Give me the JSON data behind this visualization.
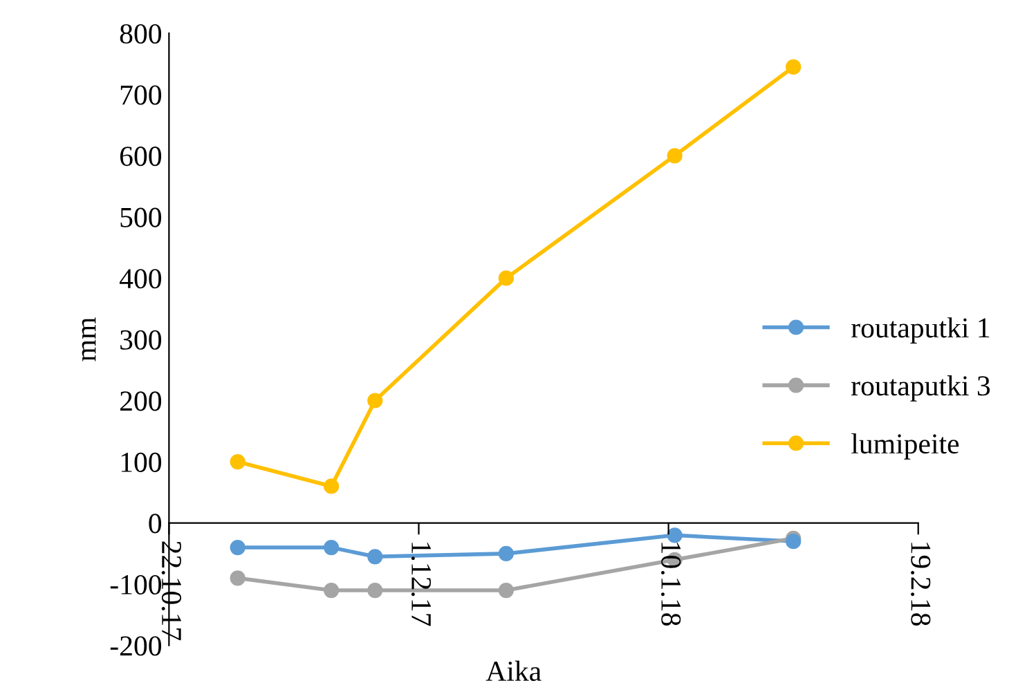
{
  "chart_data": {
    "type": "line",
    "xlabel": "Aika",
    "ylabel": "mm",
    "x": [
      "2017-11-02",
      "2017-11-17",
      "2017-11-24",
      "2017-12-15",
      "2018-01-11",
      "2018-01-30"
    ],
    "series": [
      {
        "name": "routaputki 1",
        "color": "#5b9bd5",
        "values": [
          -40,
          -40,
          -55,
          -50,
          -20,
          -30
        ]
      },
      {
        "name": "routaputki 3",
        "color": "#a5a5a5",
        "values": [
          -90,
          -110,
          -110,
          -110,
          -60,
          -25
        ]
      },
      {
        "name": "lumipeite",
        "color": "#ffc000",
        "values": [
          100,
          60,
          200,
          400,
          600,
          745
        ]
      }
    ],
    "xlim": [
      "2017-10-22",
      "2018-02-19"
    ],
    "xticks": [
      {
        "value": "2017-10-22",
        "label": "22.10.17"
      },
      {
        "value": "2017-12-01",
        "label": "1.12.17"
      },
      {
        "value": "2018-01-10",
        "label": "10.1.18"
      },
      {
        "value": "2018-02-19",
        "label": "19.2.18"
      }
    ],
    "ylim": [
      -200,
      800
    ],
    "yticks": [
      -200,
      -100,
      0,
      100,
      200,
      300,
      400,
      500,
      600,
      700,
      800
    ],
    "grid": false,
    "legend": "right",
    "marker": "circle",
    "line_style": "solid"
  }
}
